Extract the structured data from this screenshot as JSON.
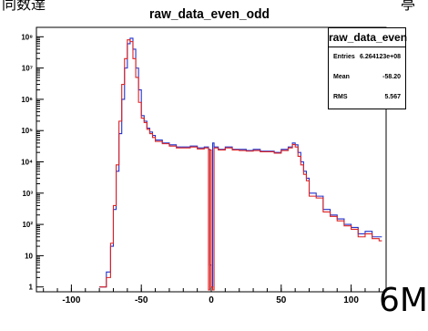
{
  "page": {
    "top_fragments": [
      "同数達",
      "亭"
    ],
    "watermark": "6M"
  },
  "chart_data": {
    "type": "histogram",
    "title": "raw_data_even_odd",
    "xlabel": "",
    "ylabel": "",
    "xlim": [
      -125,
      125
    ],
    "ylim": [
      0.7,
      200000000
    ],
    "log_y": true,
    "grid": false,
    "x_ticks": [
      "-100",
      "-50",
      "0",
      "50",
      "100"
    ],
    "y_ticks": [
      "1",
      "10",
      "10²",
      "10³",
      "10⁴",
      "10⁵",
      "10⁶",
      "10⁷",
      "10⁸"
    ],
    "stats_box": {
      "name": "raw_data_even",
      "entries": {
        "label": "Entries",
        "value": "6.264123e+08"
      },
      "mean": {
        "label": "Mean",
        "value": "-58.20"
      },
      "rms": {
        "label": "RMS",
        "value": "5.567"
      }
    },
    "series": [
      {
        "color": "#2233cc",
        "x": [
          -80,
          -75,
          -72,
          -70,
          -68,
          -66,
          -64,
          -62,
          -60,
          -58,
          -56,
          -54,
          -52,
          -50,
          -48,
          -46,
          -44,
          -42,
          -40,
          -35,
          -30,
          -25,
          -20,
          -15,
          -10,
          -5,
          -2,
          -1,
          0,
          1,
          2,
          5,
          10,
          15,
          20,
          25,
          30,
          35,
          40,
          45,
          50,
          55,
          58,
          60,
          62,
          64,
          66,
          68,
          70,
          75,
          80,
          85,
          90,
          95,
          100,
          105,
          110,
          115,
          120
        ],
        "values": [
          1,
          3,
          20,
          300,
          5000,
          80000,
          1000000,
          10000000,
          60000000,
          90000000,
          40000000,
          10000000,
          2000000,
          300000,
          200000,
          120000,
          90000,
          70000,
          50000,
          40000,
          35000,
          30000,
          30000,
          32000,
          28000,
          30000,
          25000,
          5,
          1,
          40000,
          30000,
          25000,
          30000,
          25000,
          25000,
          23000,
          25000,
          22000,
          22000,
          20000,
          25000,
          30000,
          40000,
          35000,
          20000,
          10000,
          5000,
          3000,
          1000,
          800,
          300,
          200,
          150,
          100,
          80,
          50,
          60,
          40,
          40
        ]
      },
      {
        "color": "#dd2222",
        "x": [
          -80,
          -75,
          -72,
          -70,
          -68,
          -66,
          -64,
          -62,
          -60,
          -58,
          -56,
          -54,
          -52,
          -50,
          -48,
          -46,
          -44,
          -42,
          -40,
          -35,
          -30,
          -25,
          -20,
          -15,
          -10,
          -5,
          -2,
          -1,
          0,
          1,
          2,
          5,
          10,
          15,
          20,
          25,
          30,
          35,
          40,
          45,
          50,
          55,
          58,
          60,
          62,
          64,
          66,
          68,
          70,
          75,
          80,
          85,
          90,
          95,
          100,
          105,
          110,
          115,
          120
        ],
        "values": [
          1,
          2,
          25,
          400,
          8000,
          200000,
          3000000,
          20000000,
          80000000,
          70000000,
          20000000,
          5000000,
          800000,
          250000,
          180000,
          110000,
          80000,
          60000,
          45000,
          38000,
          32000,
          28000,
          28000,
          30000,
          26000,
          28000,
          0.8,
          24000,
          1,
          0.8,
          28000,
          24000,
          28000,
          24000,
          23000,
          22000,
          23000,
          21000,
          21000,
          19000,
          23000,
          28000,
          36000,
          30000,
          15000,
          8000,
          4000,
          2500,
          800,
          700,
          250,
          180,
          130,
          90,
          70,
          40,
          50,
          35,
          30
        ]
      }
    ]
  }
}
